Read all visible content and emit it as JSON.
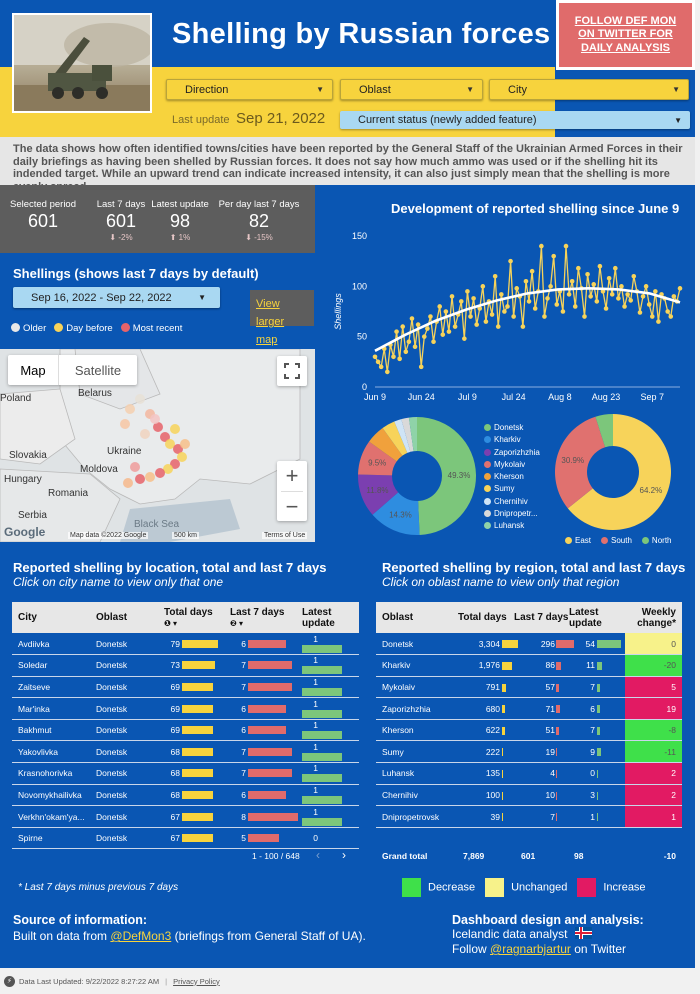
{
  "header": {
    "title": "Shelling by Russian forces",
    "follow_label": "FOLLOW DEF MON ON TWITTER FOR DAILY ANALYSIS",
    "last_update_label": "Last update",
    "last_update_value": "Sep 21, 2022",
    "filters": [
      {
        "label": "Direction"
      },
      {
        "label": "Oblast"
      },
      {
        "label": "City"
      }
    ],
    "status_label": "Current status (newly added feature)"
  },
  "description": "The data shows how often identified towns/cities have been reported by the General Staff of the Ukrainian Armed Forces in their daily briefings as having been shelled by Russian forces. It does not say how much ammo was used or if the shelling hit its indended target. While an upward trend can indicate increased intensity, it can also just simply mean that the shelling is more evenly spread.",
  "kpis": [
    {
      "label": "Selected period",
      "value": "601",
      "delta": ""
    },
    {
      "label": "Last 7 days",
      "value": "601",
      "delta": "⬇ -2%"
    },
    {
      "label": "Latest update",
      "value": "98",
      "delta": "⬆ 1%"
    },
    {
      "label": "Per day last 7 days",
      "value": "82",
      "delta": "⬇ -15%"
    }
  ],
  "map_section": {
    "title": "Shellings (shows last 7 days by default)",
    "date_range": "Sep 16, 2022 - Sep 22, 2022",
    "view_larger": "View larger map",
    "legend": [
      "Older",
      "Day before",
      "Most recent"
    ],
    "legend_colors": [
      "#e8e8e8",
      "#f7d35a",
      "#e6636a"
    ],
    "map_btn": "Map",
    "sat_btn": "Satellite",
    "labels": [
      "Poland",
      "Belarus",
      "Slovakia",
      "Ukraine",
      "Hungary",
      "Moldova",
      "Romania",
      "Serbia",
      "Black Sea"
    ],
    "attr": "Map data ©2022 Google",
    "scale": "500 km",
    "terms": "Terms of Use",
    "google": "Google",
    "zoom_in": "+",
    "zoom_out": "−"
  },
  "line_chart": {
    "title": "Development of reported shelling since June 9",
    "ylabel": "Shellings",
    "xticks": [
      "Jun 9",
      "Jun 24",
      "Jul 9",
      "Jul 24",
      "Aug 8",
      "Aug 23",
      "Sep 7"
    ],
    "yticks": [
      "0",
      "50",
      "100",
      "150"
    ]
  },
  "chart_data": [
    {
      "type": "line",
      "title": "Development of reported shelling since June 9",
      "ylabel": "Shellings",
      "ylim": [
        0,
        150
      ],
      "x_start": "Jun 9",
      "x_end": "Sep 21",
      "values": [
        30,
        25,
        20,
        38,
        15,
        42,
        30,
        55,
        28,
        60,
        35,
        45,
        68,
        40,
        62,
        20,
        50,
        58,
        70,
        45,
        65,
        80,
        52,
        75,
        55,
        90,
        60,
        72,
        85,
        48,
        95,
        70,
        88,
        62,
        78,
        100,
        65,
        85,
        72,
        110,
        60,
        92,
        75,
        80,
        125,
        70,
        98,
        90,
        60,
        105,
        85,
        115,
        78,
        95,
        140,
        70,
        88,
        100,
        130,
        82,
        95,
        75,
        140,
        92,
        105,
        80,
        118,
        98,
        70,
        112,
        90,
        102,
        85,
        120,
        95,
        78,
        108,
        92,
        118,
        88,
        100,
        80,
        92,
        86,
        110,
        95,
        74,
        90,
        100,
        82,
        70,
        95,
        65,
        92,
        88,
        75,
        70,
        90,
        85,
        98
      ],
      "trend": [
        36,
        52,
        66,
        77,
        86,
        93,
        97,
        98,
        97,
        93,
        84
      ]
    },
    {
      "type": "pie",
      "title": "",
      "slices": [
        {
          "label": "Donetsk",
          "value": 49.3,
          "color": "#7cc67b"
        },
        {
          "label": "Kharkiv",
          "value": 14.3,
          "color": "#2e8de0"
        },
        {
          "label": "Zaporizhzhia",
          "value": 11.8,
          "color": "#7b3fb0"
        },
        {
          "label": "Mykolaiv",
          "value": 9.5,
          "color": "#e0716f"
        },
        {
          "label": "Kherson",
          "value": 5.2,
          "color": "#f0a13c"
        },
        {
          "label": "Sumy",
          "value": 3.6,
          "color": "#f7d35a"
        },
        {
          "label": "Chernihiv",
          "value": 2.0,
          "color": "#cfe4f6"
        },
        {
          "label": "Dnipropetr...",
          "value": 2.1,
          "color": "#d9d9d9"
        },
        {
          "label": "Luhansk",
          "value": 2.2,
          "color": "#8fd3a8"
        }
      ]
    },
    {
      "type": "pie",
      "title": "",
      "slices": [
        {
          "label": "East",
          "value": 64.2,
          "color": "#f7d35a"
        },
        {
          "label": "South",
          "value": 30.9,
          "color": "#e0716f"
        },
        {
          "label": "North",
          "value": 4.9,
          "color": "#7cc67b"
        }
      ]
    }
  ],
  "city_table": {
    "title": "Reported shelling by location, total and last 7 days",
    "subtitle": "Click on city name to view only that one",
    "headers": [
      "City",
      "Oblast",
      "Total days",
      "Last 7 days",
      "Latest update"
    ],
    "sort1": "❶ ▾",
    "sort2": "❷ ▾",
    "pagination": "1 - 100 / 648",
    "rows": [
      {
        "city": "Avdiivka",
        "oblast": "Donetsk",
        "total": "79",
        "last7": "6",
        "latest": "1"
      },
      {
        "city": "Soledar",
        "oblast": "Donetsk",
        "total": "73",
        "last7": "7",
        "latest": "1"
      },
      {
        "city": "Zaitseve",
        "oblast": "Donetsk",
        "total": "69",
        "last7": "7",
        "latest": "1"
      },
      {
        "city": "Mar'inka",
        "oblast": "Donetsk",
        "total": "69",
        "last7": "6",
        "latest": "1"
      },
      {
        "city": "Bakhmut",
        "oblast": "Donetsk",
        "total": "69",
        "last7": "6",
        "latest": "1"
      },
      {
        "city": "Yakovlivka",
        "oblast": "Donetsk",
        "total": "68",
        "last7": "7",
        "latest": "1"
      },
      {
        "city": "Krasnohorivka",
        "oblast": "Donetsk",
        "total": "68",
        "last7": "7",
        "latest": "1"
      },
      {
        "city": "Novomykhailivka",
        "oblast": "Donetsk",
        "total": "68",
        "last7": "6",
        "latest": "1"
      },
      {
        "city": "Verkhn'okam'ya...",
        "oblast": "Donetsk",
        "total": "67",
        "last7": "8",
        "latest": "1"
      },
      {
        "city": "Spirne",
        "oblast": "Donetsk",
        "total": "67",
        "last7": "5",
        "latest": "0"
      }
    ]
  },
  "region_table": {
    "title": "Reported shelling by region, total and last 7 days",
    "subtitle": "Click on oblast name to view only that region",
    "headers": [
      "Oblast",
      "Total days",
      "Last 7 days",
      "Latest update",
      "Weekly change*"
    ],
    "rows": [
      {
        "oblast": "Donetsk",
        "total": "3,304",
        "last7": "296",
        "latest": "54",
        "change": "0",
        "change_color": "#f7f28a"
      },
      {
        "oblast": "Kharkiv",
        "total": "1,976",
        "last7": "86",
        "latest": "11",
        "change": "-20",
        "change_color": "#3fe04a"
      },
      {
        "oblast": "Mykolaiv",
        "total": "791",
        "last7": "57",
        "latest": "7",
        "change": "5",
        "change_color": "#e21a63"
      },
      {
        "oblast": "Zaporizhzhia",
        "total": "680",
        "last7": "71",
        "latest": "6",
        "change": "19",
        "change_color": "#e21a63"
      },
      {
        "oblast": "Kherson",
        "total": "622",
        "last7": "51",
        "latest": "7",
        "change": "-8",
        "change_color": "#3fe04a"
      },
      {
        "oblast": "Sumy",
        "total": "222",
        "last7": "19",
        "latest": "9",
        "change": "-11",
        "change_color": "#3fe04a"
      },
      {
        "oblast": "Luhansk",
        "total": "135",
        "last7": "4",
        "latest": "0",
        "change": "2",
        "change_color": "#e21a63"
      },
      {
        "oblast": "Chernihiv",
        "total": "100",
        "last7": "10",
        "latest": "3",
        "change": "2",
        "change_color": "#e21a63"
      },
      {
        "oblast": "Dnipropetrovsk",
        "total": "39",
        "last7": "7",
        "latest": "1",
        "change": "1",
        "change_color": "#e21a63"
      }
    ],
    "grand": {
      "label": "Grand total",
      "total": "7,869",
      "last7": "601",
      "latest": "98",
      "change": "-10"
    }
  },
  "note": "* Last 7 days minus previous 7 days",
  "legend_bottom": [
    {
      "label": "Decrease",
      "color": "#3fe04a"
    },
    {
      "label": "Unchanged",
      "color": "#f7f28a"
    },
    {
      "label": "Increase",
      "color": "#e21a63"
    }
  ],
  "source": {
    "title": "Source of information:",
    "text_pre": "Built on data from ",
    "link": "@DefMon3",
    "text_post": " (briefings from General Staff of UA)."
  },
  "design": {
    "title": "Dashboard design and analysis:",
    "line1": "Icelandic data analyst",
    "follow_pre": "Follow ",
    "link": "@ragnarbjartur",
    "follow_post": " on Twitter"
  },
  "footer": {
    "updated": "Data Last Updated: 9/22/2022 8:27:22 AM",
    "privacy": "Privacy Policy"
  }
}
